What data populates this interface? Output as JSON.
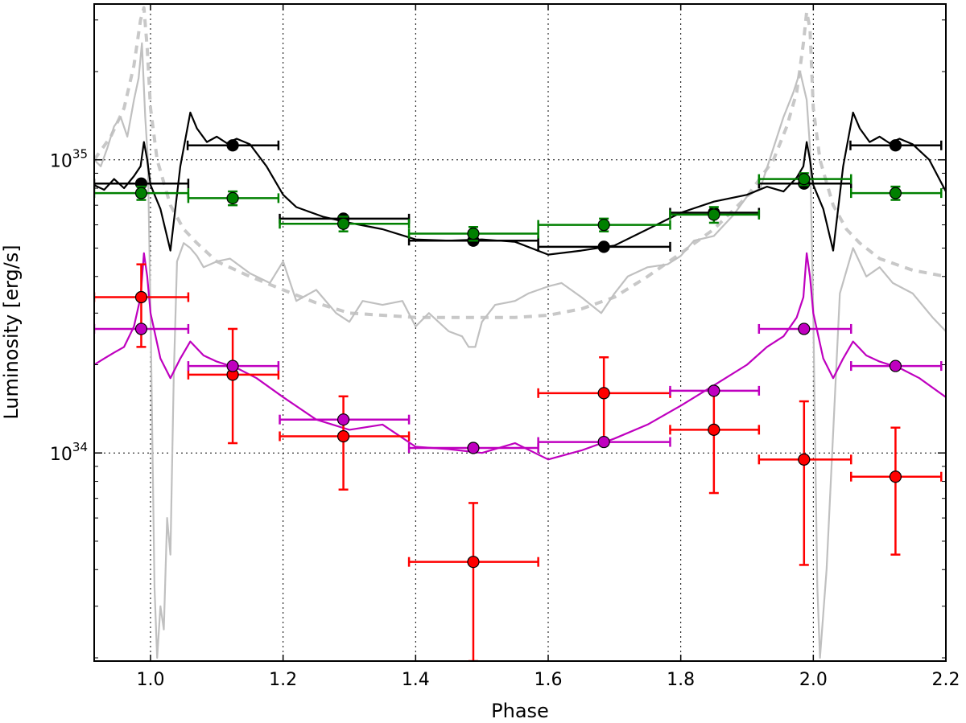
{
  "chart_data": {
    "type": "line",
    "title": "",
    "xlabel": "Phase",
    "ylabel": "Luminosity [erg/s]",
    "xlim": [
      0.915,
      2.2
    ],
    "ylim": [
      1.95e+33,
      3.4e+35
    ],
    "yscale": "log",
    "grid": true,
    "x_ticks": [
      1.0,
      1.2,
      1.4,
      1.6,
      1.8,
      2.0,
      2.2
    ],
    "x_tick_labels": [
      "1.0",
      "1.2",
      "1.4",
      "1.6",
      "1.8",
      "2.0",
      "2.2"
    ],
    "y_major_ticks": [
      1e+34,
      1e+35
    ],
    "y_tick_labels": [
      {
        "base": "10",
        "exp": "34"
      },
      {
        "base": "10",
        "exp": "35"
      }
    ],
    "y_minor_ticks": [
      2e+33,
      3e+33,
      4e+33,
      5e+33,
      6e+33,
      7e+33,
      8e+33,
      9e+33,
      2e+34,
      3e+34,
      4e+34,
      5e+34,
      6e+34,
      7e+34,
      8e+34,
      9e+34,
      2e+35,
      3e+35
    ],
    "series": [
      {
        "kind": "points",
        "color": "#000000",
        "points": [
          {
            "x": 0.986,
            "y": 8.3e+34,
            "xlo": 0.915,
            "xhi": 1.057
          },
          {
            "x": 1.124,
            "y": 1.12e+35,
            "xlo": 1.056,
            "xhi": 1.193
          },
          {
            "x": 1.291,
            "y": 6.3e+34,
            "xlo": 1.195,
            "xhi": 1.39
          },
          {
            "x": 1.487,
            "y": 5.3e+34,
            "xlo": 1.39,
            "xhi": 1.585
          },
          {
            "x": 1.684,
            "y": 5.05e+34,
            "xlo": 1.585,
            "xhi": 1.784
          },
          {
            "x": 1.85,
            "y": 6.6e+34,
            "xlo": 1.784,
            "xhi": 1.918
          },
          {
            "x": 1.986,
            "y": 8.3e+34,
            "xlo": 1.918,
            "xhi": 2.057
          },
          {
            "x": 2.124,
            "y": 1.12e+35,
            "xlo": 2.056,
            "xhi": 2.193
          }
        ]
      },
      {
        "kind": "points",
        "color": "#008000",
        "points": [
          {
            "x": 0.986,
            "y": 7.7e+34,
            "xlo": 0.915,
            "xhi": 1.057,
            "ylo": 7.3e+34,
            "yhi": 8.1e+34
          },
          {
            "x": 1.124,
            "y": 7.4e+34,
            "xlo": 1.057,
            "xhi": 1.193,
            "ylo": 7e+34,
            "yhi": 7.8e+34
          },
          {
            "x": 1.291,
            "y": 6.05e+34,
            "xlo": 1.195,
            "xhi": 1.39,
            "ylo": 5.7e+34,
            "yhi": 6.4e+34
          },
          {
            "x": 1.487,
            "y": 5.6e+34,
            "xlo": 1.39,
            "xhi": 1.585,
            "ylo": 5.3e+34,
            "yhi": 5.9e+34
          },
          {
            "x": 1.684,
            "y": 6e+34,
            "xlo": 1.585,
            "xhi": 1.784,
            "ylo": 5.7e+34,
            "yhi": 6.3e+34
          },
          {
            "x": 1.85,
            "y": 6.5e+34,
            "xlo": 1.784,
            "xhi": 1.918,
            "ylo": 6.1e+34,
            "yhi": 6.9e+34
          },
          {
            "x": 1.986,
            "y": 8.6e+34,
            "xlo": 1.918,
            "xhi": 2.057,
            "ylo": 8.2e+34,
            "yhi": 9e+34
          },
          {
            "x": 2.124,
            "y": 7.7e+34,
            "xlo": 2.057,
            "xhi": 2.193,
            "ylo": 7.3e+34,
            "yhi": 8.1e+34
          }
        ]
      },
      {
        "kind": "points",
        "color": "#ff0000",
        "points": [
          {
            "x": 0.986,
            "y": 3.4e+34,
            "xlo": 0.915,
            "xhi": 1.057,
            "ylo": 2.3e+34,
            "yhi": 4.4e+34
          },
          {
            "x": 1.124,
            "y": 1.85e+34,
            "xlo": 1.057,
            "xhi": 1.193,
            "ylo": 1.08e+34,
            "yhi": 2.65e+34
          },
          {
            "x": 1.291,
            "y": 1.14e+34,
            "xlo": 1.195,
            "xhi": 1.39,
            "ylo": 7.5e+33,
            "yhi": 1.56e+34
          },
          {
            "x": 1.487,
            "y": 4.25e+33,
            "xlo": 1.39,
            "xhi": 1.585,
            "ylo": 1.95e+33,
            "yhi": 6.75e+33
          },
          {
            "x": 1.684,
            "y": 1.6e+34,
            "xlo": 1.585,
            "xhi": 1.784,
            "ylo": 1.08e+34,
            "yhi": 2.12e+34
          },
          {
            "x": 1.85,
            "y": 1.2e+34,
            "xlo": 1.784,
            "xhi": 1.918,
            "ylo": 7.3e+33,
            "yhi": 1.67e+34
          },
          {
            "x": 1.986,
            "y": 9.5e+33,
            "xlo": 1.918,
            "xhi": 2.057,
            "ylo": 4.15e+33,
            "yhi": 1.5e+34
          },
          {
            "x": 2.124,
            "y": 8.3e+33,
            "xlo": 2.057,
            "xhi": 2.193,
            "ylo": 4.5e+33,
            "yhi": 1.22e+34
          }
        ]
      },
      {
        "kind": "points",
        "color": "#bf00bf",
        "points": [
          {
            "x": 0.986,
            "y": 2.65e+34,
            "xlo": 0.915,
            "xhi": 1.057
          },
          {
            "x": 1.124,
            "y": 1.98e+34,
            "xlo": 1.057,
            "xhi": 1.193
          },
          {
            "x": 1.291,
            "y": 1.3e+34,
            "xlo": 1.195,
            "xhi": 1.39
          },
          {
            "x": 1.487,
            "y": 1.04e+34,
            "xlo": 1.39,
            "xhi": 1.585
          },
          {
            "x": 1.684,
            "y": 1.09e+34,
            "xlo": 1.585,
            "xhi": 1.784
          },
          {
            "x": 1.85,
            "y": 1.63e+34,
            "xlo": 1.784,
            "xhi": 1.918
          },
          {
            "x": 1.986,
            "y": 2.65e+34,
            "xlo": 1.918,
            "xhi": 2.057
          },
          {
            "x": 2.124,
            "y": 1.98e+34,
            "xlo": 2.057,
            "xhi": 2.193
          }
        ]
      },
      {
        "kind": "line",
        "color": "#000000",
        "dash": "",
        "x": [
          0.915,
          0.93,
          0.945,
          0.96,
          0.975,
          0.985,
          0.99,
          0.995,
          1.0,
          1.015,
          1.03,
          1.045,
          1.06,
          1.07,
          1.085,
          1.1,
          1.115,
          1.13,
          1.15,
          1.175,
          1.2,
          1.22,
          1.26,
          1.3,
          1.35,
          1.4,
          1.45,
          1.5,
          1.55,
          1.6,
          1.65,
          1.7,
          1.75,
          1.8,
          1.85,
          1.9,
          1.93,
          1.955,
          1.975,
          1.985,
          1.99,
          1.995,
          2.0,
          2.015,
          2.03,
          2.045,
          2.06,
          2.07,
          2.085,
          2.1,
          2.115,
          2.13,
          2.15,
          2.175,
          2.2
        ],
        "y": [
          8.2e+34,
          7.9e+34,
          8.6e+34,
          8e+34,
          8.8e+34,
          9.5e+34,
          1.15e+35,
          1e+35,
          8.2e+34,
          6.8e+34,
          4.9e+34,
          9.5e+34,
          1.45e+35,
          1.28e+35,
          1.15e+35,
          1.2e+35,
          1.14e+35,
          1.18e+35,
          1.13e+35,
          9.5e+34,
          7.6e+34,
          6.9e+34,
          6.4e+34,
          6.1e+34,
          5.8e+34,
          5.35e+34,
          5.3e+34,
          5.35e+34,
          5.25e+34,
          4.75e+34,
          4.9e+34,
          5.1e+34,
          5.8e+34,
          6.6e+34,
          7.2e+34,
          7.6e+34,
          8.1e+34,
          7.8e+34,
          8.7e+34,
          9.5e+34,
          1.15e+35,
          1e+35,
          8.2e+34,
          6.8e+34,
          4.9e+34,
          9.5e+34,
          1.45e+35,
          1.28e+35,
          1.15e+35,
          1.2e+35,
          1.14e+35,
          1.18e+35,
          1.13e+35,
          1e+35,
          7.8e+34
        ]
      },
      {
        "kind": "line",
        "color": "#bf00bf",
        "dash": "",
        "x": [
          0.915,
          0.93,
          0.945,
          0.96,
          0.975,
          0.985,
          0.99,
          0.995,
          1.0,
          1.015,
          1.03,
          1.045,
          1.06,
          1.08,
          1.1,
          1.13,
          1.16,
          1.2,
          1.25,
          1.3,
          1.35,
          1.4,
          1.45,
          1.5,
          1.55,
          1.6,
          1.65,
          1.7,
          1.75,
          1.8,
          1.85,
          1.9,
          1.93,
          1.955,
          1.975,
          1.985,
          1.99,
          1.995,
          2.0,
          2.015,
          2.03,
          2.045,
          2.06,
          2.08,
          2.1,
          2.13,
          2.16,
          2.2
        ],
        "y": [
          2e+34,
          2.1e+34,
          2.2e+34,
          2.3e+34,
          2.7e+34,
          3.4e+34,
          4.8e+34,
          4e+34,
          3e+34,
          2.1e+34,
          1.8e+34,
          2.1e+34,
          2.4e+34,
          2.15e+34,
          2.05e+34,
          1.95e+34,
          1.8e+34,
          1.55e+34,
          1.3e+34,
          1.2e+34,
          1.25e+34,
          1.05e+34,
          1.03e+34,
          1e+34,
          1.08e+34,
          9.5e+33,
          1.02e+34,
          1.12e+34,
          1.25e+34,
          1.45e+34,
          1.7e+34,
          2e+34,
          2.3e+34,
          2.5e+34,
          2.9e+34,
          3.4e+34,
          4.8e+34,
          4e+34,
          3e+34,
          2.1e+34,
          1.8e+34,
          2.1e+34,
          2.4e+34,
          2.15e+34,
          2.05e+34,
          1.95e+34,
          1.8e+34,
          1.55e+34
        ]
      },
      {
        "kind": "line",
        "color": "#c8c8c8",
        "dash": "10,8",
        "x": [
          0.915,
          0.94,
          0.96,
          0.975,
          0.985,
          0.99,
          0.995,
          1.0,
          1.01,
          1.03,
          1.05,
          1.07,
          1.1,
          1.15,
          1.2,
          1.25,
          1.3,
          1.35,
          1.4,
          1.45,
          1.5,
          1.55,
          1.6,
          1.65,
          1.7,
          1.75,
          1.8,
          1.85,
          1.9,
          1.94,
          1.96,
          1.975,
          1.985,
          1.99,
          1.995,
          2.0,
          2.01,
          2.03,
          2.05,
          2.07,
          2.1,
          2.15,
          2.2
        ],
        "y": [
          1e+35,
          1.2e+35,
          1.5e+35,
          2.1e+35,
          3e+35,
          3.3e+35,
          2.4e+35,
          1.5e+35,
          1e+35,
          7e+34,
          5.8e+34,
          5.2e+34,
          4.5e+34,
          4e+34,
          3.6e+34,
          3.25e+34,
          3e+34,
          2.95e+34,
          2.9e+34,
          2.9e+34,
          2.9e+34,
          2.9e+34,
          2.95e+34,
          3.1e+34,
          3.4e+34,
          4e+34,
          4.8e+34,
          5.8e+34,
          7.5e+34,
          1e+35,
          1.3e+35,
          1.7e+35,
          2.5e+35,
          3.2e+35,
          2.8e+35,
          1.5e+35,
          1e+35,
          7e+34,
          5.8e+34,
          5.2e+34,
          4.6e+34,
          4.2e+34,
          4e+34
        ]
      },
      {
        "kind": "line",
        "color": "#c0c0c0",
        "dash": "",
        "x": [
          0.915,
          0.925,
          0.935,
          0.945,
          0.955,
          0.965,
          0.975,
          0.982,
          0.987,
          0.992,
          0.996,
          1.0,
          1.003,
          1.006,
          1.01,
          1.015,
          1.02,
          1.025,
          1.03,
          1.035,
          1.04,
          1.05,
          1.06,
          1.07,
          1.08,
          1.1,
          1.12,
          1.15,
          1.18,
          1.2,
          1.22,
          1.25,
          1.28,
          1.3,
          1.32,
          1.35,
          1.38,
          1.4,
          1.42,
          1.45,
          1.47,
          1.48,
          1.49,
          1.5,
          1.52,
          1.55,
          1.57,
          1.6,
          1.62,
          1.65,
          1.68,
          1.7,
          1.72,
          1.75,
          1.78,
          1.8,
          1.82,
          1.85,
          1.88,
          1.9,
          1.92,
          1.94,
          1.955,
          1.97,
          1.98,
          1.99,
          1.995,
          2.0,
          2.003,
          2.006,
          2.01,
          2.02,
          2.04,
          2.06,
          2.08,
          2.1,
          2.12,
          2.15,
          2.18,
          2.2
        ],
        "y": [
          1e+35,
          9.5e+34,
          1.1e+35,
          1.3e+35,
          1.4e+35,
          1.2e+35,
          1.6e+35,
          1.9e+35,
          2.5e+35,
          1.4e+35,
          1e+35,
          3e+34,
          1e+34,
          3.5e+33,
          2e+33,
          3e+33,
          2.5e+33,
          6e+33,
          4.5e+33,
          1.8e+34,
          4.5e+34,
          5.2e+34,
          5e+34,
          4.7e+34,
          4.3e+34,
          4.5e+34,
          4.6e+34,
          4.1e+34,
          3.8e+34,
          4.5e+34,
          3.3e+34,
          3.6e+34,
          3e+34,
          2.8e+34,
          3.3e+34,
          3.2e+34,
          3.3e+34,
          2.7e+34,
          3e+34,
          2.6e+34,
          2.5e+34,
          2.3e+34,
          2.3e+34,
          2.8e+34,
          3.2e+34,
          3.3e+34,
          3.5e+34,
          3.7e+34,
          3.8e+34,
          3.4e+34,
          3e+34,
          3.5e+34,
          4e+34,
          4.3e+34,
          4.4e+34,
          4.7e+34,
          5.3e+34,
          5.5e+34,
          6.5e+34,
          7.5e+34,
          8e+34,
          1.1e+35,
          1.4e+35,
          1.7e+35,
          2e+35,
          1.6e+35,
          1.1e+35,
          3e+34,
          1e+34,
          3.5e+33,
          2e+33,
          4e+33,
          3.5e+34,
          5e+34,
          4e+34,
          4.3e+34,
          3.8e+34,
          3.5e+34,
          2.9e+34,
          2.6e+34
        ]
      }
    ]
  }
}
